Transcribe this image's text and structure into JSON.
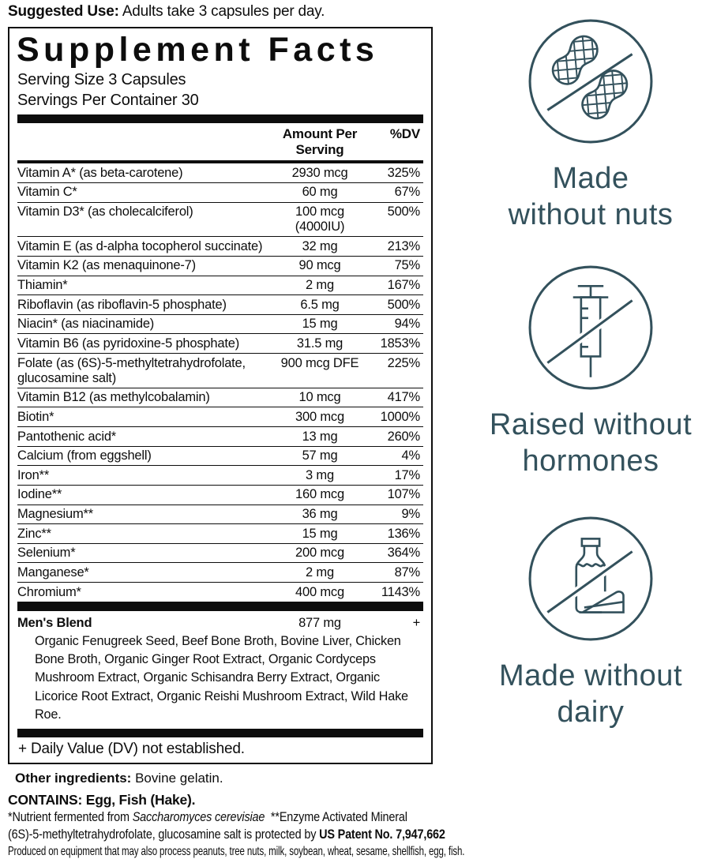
{
  "page": {
    "suggested_use_label": "Suggested Use:",
    "suggested_use_text": " Adults take 3 capsules per day."
  },
  "panel": {
    "title": "Supplement Facts",
    "serving_size": "Serving Size 3 Capsules",
    "servings_per_container": "Servings Per Container 30",
    "col_amount": "Amount Per Serving",
    "col_dv": "%DV",
    "rows": [
      {
        "name": "Vitamin A* (as beta-carotene)",
        "amount": "2930 mcg",
        "dv": "325%"
      },
      {
        "name": "Vitamin C*",
        "amount": "60 mg",
        "dv": "67%"
      },
      {
        "name": "Vitamin D3* (as cholecalciferol)",
        "amount": "100 mcg (4000IU)",
        "dv": "500%"
      },
      {
        "name": "Vitamin E (as d-alpha tocopherol succinate)",
        "amount": "32 mg",
        "dv": "213%"
      },
      {
        "name": "Vitamin K2 (as menaquinone-7)",
        "amount": "90 mcg",
        "dv": "75%"
      },
      {
        "name": "Thiamin*",
        "amount": "2 mg",
        "dv": "167%"
      },
      {
        "name": "Riboflavin (as riboflavin-5 phosphate)",
        "amount": "6.5 mg",
        "dv": "500%"
      },
      {
        "name": "Niacin* (as niacinamide)",
        "amount": "15 mg",
        "dv": "94%"
      },
      {
        "name": "Vitamin B6 (as pyridoxine-5 phosphate)",
        "amount": "31.5 mg",
        "dv": "1853%"
      },
      {
        "name": "Folate (as (6S)-5-methyltetrahydrofolate, glucosamine salt)",
        "amount": "900 mcg DFE",
        "dv": "225%"
      },
      {
        "name": "Vitamin B12 (as methylcobalamin)",
        "amount": "10 mcg",
        "dv": "417%"
      },
      {
        "name": "Biotin*",
        "amount": "300 mcg",
        "dv": "1000%"
      },
      {
        "name": "Pantothenic acid*",
        "amount": "13 mg",
        "dv": "260%"
      },
      {
        "name": "Calcium (from eggshell)",
        "amount": "57 mg",
        "dv": "4%"
      },
      {
        "name": "Iron**",
        "amount": "3 mg",
        "dv": "17%"
      },
      {
        "name": "Iodine**",
        "amount": "160 mcg",
        "dv": "107%"
      },
      {
        "name": "Magnesium**",
        "amount": "36 mg",
        "dv": "9%"
      },
      {
        "name": "Zinc**",
        "amount": "15 mg",
        "dv": "136%"
      },
      {
        "name": "Selenium*",
        "amount": "200 mcg",
        "dv": "364%"
      },
      {
        "name": "Manganese*",
        "amount": "2 mg",
        "dv": "87%"
      },
      {
        "name": "Chromium*",
        "amount": "400 mcg",
        "dv": "1143%"
      }
    ],
    "blend": {
      "name": "Men's Blend",
      "amount": "877 mg",
      "dv": "+",
      "ingredients": "Organic Fenugreek Seed, Beef Bone Broth, Bovine Liver, Chicken Bone Broth, Organic Ginger Root Extract, Organic Cordyceps Mushroom Extract, Organic Schisandra Berry Extract, Organic Licorice Root Extract, Organic Reishi Mushroom Extract, Wild Hake Roe."
    },
    "dv_note": "+ Daily Value (DV) not established."
  },
  "footer": {
    "other_ingredients_label": "Other ingredients:",
    "other_ingredients_text": " Bovine gelatin.",
    "contains": "CONTAINS: Egg, Fish (Hake).",
    "footnote_prefix": "*Nutrient fermented from ",
    "footnote_species": "Saccharomyces cerevisiae",
    "footnote_suffix": "  **Enzyme Activated Mineral",
    "patent_prefix": "(6S)-5-methyltetrahydrofolate, glucosamine salt is protected by ",
    "patent_bold": "US Patent No. 7,947,662",
    "allergen_line": "Produced on equipment that may also process peanuts, tree nuts, milk, soybean, wheat, sesame, shellfish, egg, fish."
  },
  "badges": [
    {
      "icon": "no-nuts-icon",
      "line1": "Made",
      "line2": "without nuts"
    },
    {
      "icon": "no-hormones-icon",
      "line1": "Raised without",
      "line2": "hormones"
    },
    {
      "icon": "no-dairy-icon",
      "line1": "Made without",
      "line2": "dairy"
    }
  ],
  "colors": {
    "accent_teal": "#33515c",
    "label_black": "#0d0d0d"
  }
}
